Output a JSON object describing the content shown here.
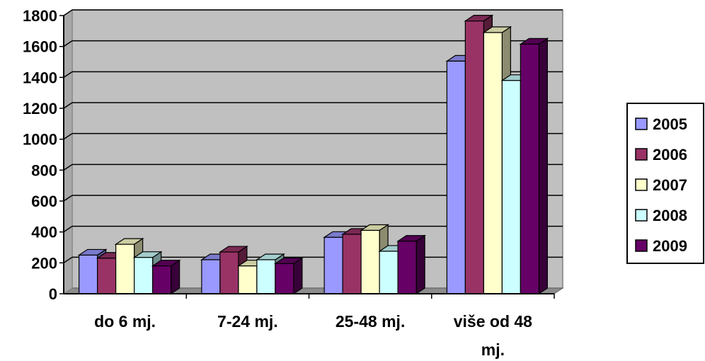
{
  "chart_data": {
    "type": "bar",
    "categories": [
      "do 6 mj.",
      "7-24 mj.",
      "25-48 mj.",
      "više od 48 mj."
    ],
    "category_lines": [
      [
        "do 6 mj."
      ],
      [
        "7-24 mj."
      ],
      [
        "25-48 mj."
      ],
      [
        "više od 48",
        "mj."
      ]
    ],
    "series": [
      {
        "name": "2005",
        "values": [
          250,
          220,
          365,
          1505
        ]
      },
      {
        "name": "2006",
        "values": [
          230,
          270,
          385,
          1765
        ]
      },
      {
        "name": "2007",
        "values": [
          320,
          180,
          410,
          1690
        ]
      },
      {
        "name": "2008",
        "values": [
          235,
          220,
          275,
          1380
        ]
      },
      {
        "name": "2009",
        "values": [
          180,
          195,
          340,
          1615
        ]
      }
    ],
    "y_ticks": [
      "0",
      "200",
      "400",
      "600",
      "800",
      "1000",
      "1200",
      "1400",
      "1600",
      "1800"
    ],
    "ylim": [
      0,
      1800
    ],
    "grid": true,
    "three_d": true,
    "legend_position": "right",
    "plot_background": "#c0c0c0",
    "colors": [
      "#9999ff",
      "#993366",
      "#ffffcc",
      "#ccffff",
      "#660066"
    ],
    "title": "",
    "xlabel": "",
    "ylabel": ""
  }
}
